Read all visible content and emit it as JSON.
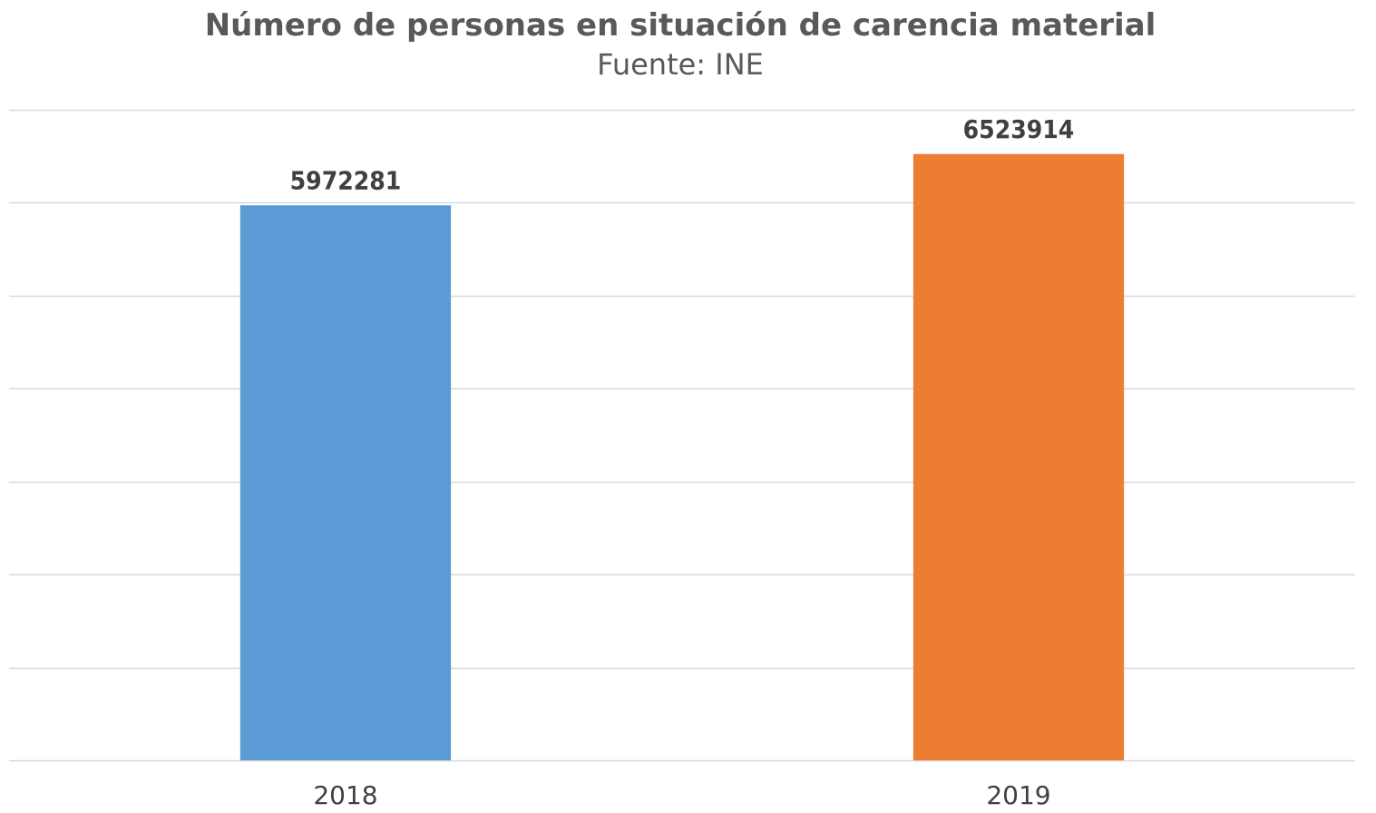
{
  "chart_data": {
    "type": "bar",
    "title": "Número de personas en situación de carencia material",
    "subtitle": "Fuente: INE",
    "categories": [
      "2018",
      "2019"
    ],
    "values": [
      5972281,
      6523914
    ],
    "colors": [
      "#5B9BD5",
      "#ED7D31"
    ],
    "ylim": [
      0,
      7000000
    ],
    "y_gridline_step": 1000000,
    "grid": true,
    "y_tick_labels_visible": false,
    "legend": "none",
    "data_labels": true
  }
}
